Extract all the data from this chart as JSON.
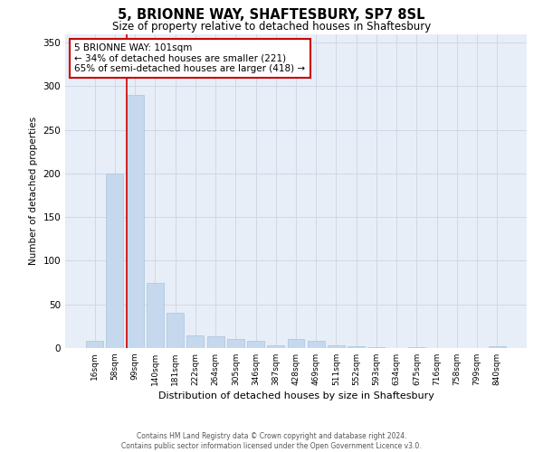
{
  "title1": "5, BRIONNE WAY, SHAFTESBURY, SP7 8SL",
  "title2": "Size of property relative to detached houses in Shaftesbury",
  "xlabel": "Distribution of detached houses by size in Shaftesbury",
  "ylabel": "Number of detached properties",
  "categories": [
    "16sqm",
    "58sqm",
    "99sqm",
    "140sqm",
    "181sqm",
    "222sqm",
    "264sqm",
    "305sqm",
    "346sqm",
    "387sqm",
    "428sqm",
    "469sqm",
    "511sqm",
    "552sqm",
    "593sqm",
    "634sqm",
    "675sqm",
    "716sqm",
    "758sqm",
    "799sqm",
    "840sqm"
  ],
  "values": [
    8,
    200,
    290,
    75,
    40,
    15,
    13,
    10,
    8,
    3,
    10,
    8,
    3,
    2,
    1,
    0,
    1,
    0,
    0,
    0,
    2
  ],
  "bar_color": "#c5d8ed",
  "bar_edge_color": "#a8c4dc",
  "grid_color": "#d0d8e8",
  "background_color": "#e8eef7",
  "vline_x_index": 2,
  "vline_color": "#cc0000",
  "annotation_text": "5 BRIONNE WAY: 101sqm\n← 34% of detached houses are smaller (221)\n65% of semi-detached houses are larger (418) →",
  "annotation_box_color": "#cc0000",
  "ylim": [
    0,
    360
  ],
  "yticks": [
    0,
    50,
    100,
    150,
    200,
    250,
    300,
    350
  ],
  "footer_line1": "Contains HM Land Registry data © Crown copyright and database right 2024.",
  "footer_line2": "Contains public sector information licensed under the Open Government Licence v3.0."
}
